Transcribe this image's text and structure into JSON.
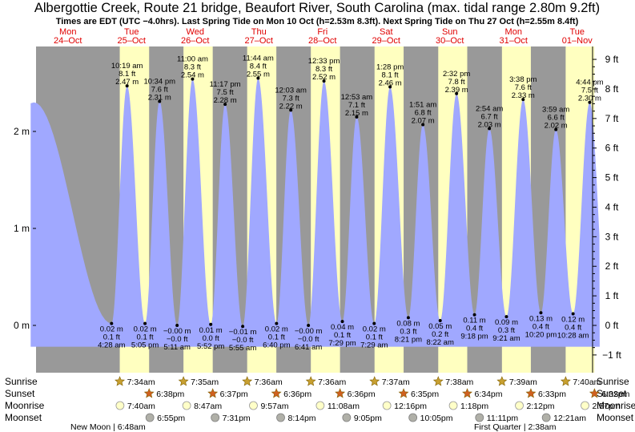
{
  "chart_data": {
    "type": "area",
    "title": "Albergottie Creek, Route 21 bridge, Beaufort River, South Carolina (max. tidal range 2.80m 9.2ft)",
    "subtitle": "Times are EDT (UTC −4.0hrs). Last Spring Tide on Mon 10 Oct (h=2.53m 8.3ft). Next Spring Tide on Thu 27 Oct (h=2.55m 8.4ft)",
    "days": [
      {
        "dow": "Mon",
        "date": "24–Oct"
      },
      {
        "dow": "Tue",
        "date": "25–Oct"
      },
      {
        "dow": "Wed",
        "date": "26–Oct"
      },
      {
        "dow": "Thu",
        "date": "27–Oct"
      },
      {
        "dow": "Fri",
        "date": "28–Oct"
      },
      {
        "dow": "Sat",
        "date": "29–Oct"
      },
      {
        "dow": "Sun",
        "date": "30–Oct"
      },
      {
        "dow": "Mon",
        "date": "31–Oct"
      },
      {
        "dow": "Tue",
        "date": "01–Nov"
      }
    ],
    "ylabel_left_unit": "m",
    "ylabel_right_unit": "ft",
    "ylim_m": [
      -0.45,
      2.95
    ],
    "yticks_m": [
      0,
      1,
      2
    ],
    "yticks_m_labels": [
      "0 m",
      "1 m",
      "2 m"
    ],
    "yticks_ft": [
      -1,
      0,
      1,
      2,
      3,
      4,
      5,
      6,
      7,
      8,
      9
    ],
    "yticks_ft_labels": [
      "−1 ft",
      "0 ft",
      "1 ft",
      "2 ft",
      "3 ft",
      "4 ft",
      "5 ft",
      "6 ft",
      "7 ft",
      "8 ft",
      "9 ft"
    ],
    "tides": [
      {
        "type": "high",
        "t": -0.8,
        "h": 2.3
      },
      {
        "type": "low",
        "d": 1,
        "hr": 4.467,
        "time": "4:28 am",
        "m": "0.02 m",
        "ft": "0.1 ft",
        "h": 0.02
      },
      {
        "type": "high",
        "d": 1,
        "hr": 10.317,
        "time": "10:19 am",
        "m": "2.47 m",
        "ft": "8.1 ft",
        "h": 2.47
      },
      {
        "type": "low",
        "d": 1,
        "hr": 17.083,
        "time": "5:05 pm",
        "m": "0.02 m",
        "ft": "0.1 ft",
        "h": 0.02
      },
      {
        "type": "high",
        "d": 1,
        "hr": 22.567,
        "time": "10:34 pm",
        "m": "2.31 m",
        "ft": "7.6 ft",
        "h": 2.31
      },
      {
        "type": "low",
        "d": 2,
        "hr": 5.183,
        "time": "5:11 am",
        "m": "−0.00 m",
        "ft": "−0.0 ft",
        "h": 0.0
      },
      {
        "type": "high",
        "d": 2,
        "hr": 11.0,
        "time": "11:00 am",
        "m": "2.54 m",
        "ft": "8.3 ft",
        "h": 2.54
      },
      {
        "type": "low",
        "d": 2,
        "hr": 17.867,
        "time": "5:52 pm",
        "m": "0.01 m",
        "ft": "0.0 ft",
        "h": 0.01
      },
      {
        "type": "high",
        "d": 2,
        "hr": 23.283,
        "time": "11:17 pm",
        "m": "2.28 m",
        "ft": "7.5 ft",
        "h": 2.28
      },
      {
        "type": "low",
        "d": 3,
        "hr": 5.917,
        "time": "5:55 am",
        "m": "−0.01 m",
        "ft": "−0.0 ft",
        "h": -0.01
      },
      {
        "type": "high",
        "d": 3,
        "hr": 11.733,
        "time": "11:44 am",
        "m": "2.55 m",
        "ft": "8.4 ft",
        "h": 2.55
      },
      {
        "type": "low",
        "d": 3,
        "hr": 18.667,
        "time": "6:40 pm",
        "m": "0.02 m",
        "ft": "0.1 ft",
        "h": 0.02
      },
      {
        "type": "high",
        "d": 4,
        "hr": 0.05,
        "time": "12:03 am",
        "m": "2.22 m",
        "ft": "7.3 ft",
        "h": 2.22
      },
      {
        "type": "low",
        "d": 4,
        "hr": 6.683,
        "time": "6:41 am",
        "m": "−0.00 m",
        "ft": "−0.0 ft",
        "h": 0.0
      },
      {
        "type": "high",
        "d": 4,
        "hr": 12.55,
        "time": "12:33 pm",
        "m": "2.52 m",
        "ft": "8.3 ft",
        "h": 2.52
      },
      {
        "type": "low",
        "d": 4,
        "hr": 19.483,
        "time": "7:29 pm",
        "m": "0.04 m",
        "ft": "0.1 ft",
        "h": 0.04
      },
      {
        "type": "high",
        "d": 5,
        "hr": 0.883,
        "time": "12:53 am",
        "m": "2.15 m",
        "ft": "7.1 ft",
        "h": 2.15
      },
      {
        "type": "low",
        "d": 5,
        "hr": 7.483,
        "time": "7:29 am",
        "m": "0.02 m",
        "ft": "0.1 ft",
        "h": 0.02
      },
      {
        "type": "high",
        "d": 5,
        "hr": 13.467,
        "time": "1:28 pm",
        "m": "2.46 m",
        "ft": "8.1 ft",
        "h": 2.46
      },
      {
        "type": "low",
        "d": 5,
        "hr": 20.35,
        "time": "8:21 pm",
        "m": "0.08 m",
        "ft": "0.3 ft",
        "h": 0.08
      },
      {
        "type": "high",
        "d": 6,
        "hr": 1.85,
        "time": "1:51 am",
        "m": "2.07 m",
        "ft": "6.8 ft",
        "h": 2.07
      },
      {
        "type": "low",
        "d": 6,
        "hr": 8.367,
        "time": "8:22 am",
        "m": "0.05 m",
        "ft": "0.2 ft",
        "h": 0.05
      },
      {
        "type": "high",
        "d": 6,
        "hr": 14.533,
        "time": "2:32 pm",
        "m": "2.39 m",
        "ft": "7.8 ft",
        "h": 2.39
      },
      {
        "type": "low",
        "d": 6,
        "hr": 21.3,
        "time": "9:18 pm",
        "m": "0.11 m",
        "ft": "0.4 ft",
        "h": 0.11
      },
      {
        "type": "high",
        "d": 7,
        "hr": 2.9,
        "time": "2:54 am",
        "m": "2.03 m",
        "ft": "6.7 ft",
        "h": 2.03
      },
      {
        "type": "low",
        "d": 7,
        "hr": 9.35,
        "time": "9:21 am",
        "m": "0.09 m",
        "ft": "0.3 ft",
        "h": 0.09
      },
      {
        "type": "high",
        "d": 7,
        "hr": 15.633,
        "time": "3:38 pm",
        "m": "2.33 m",
        "ft": "7.6 ft",
        "h": 2.33
      },
      {
        "type": "low",
        "d": 7,
        "hr": 22.333,
        "time": "10:20 pm",
        "m": "0.13 m",
        "ft": "0.4 ft",
        "h": 0.13
      },
      {
        "type": "high",
        "d": 8,
        "hr": 3.983,
        "time": "3:59 am",
        "m": "2.02 m",
        "ft": "6.6 ft",
        "h": 2.02
      },
      {
        "type": "low",
        "d": 8,
        "hr": 10.467,
        "time": "10:28 am",
        "m": "0.12 m",
        "ft": "0.4 ft",
        "h": 0.12
      },
      {
        "type": "high",
        "d": 8,
        "hr": 16.733,
        "time": "4:44 pm",
        "m": "2.30 m",
        "ft": "7.5 ft",
        "h": 2.3
      }
    ],
    "daylight": [
      {
        "d": 1,
        "rise": 7.567,
        "set": 18.633
      },
      {
        "d": 2,
        "rise": 7.583,
        "set": 18.617
      },
      {
        "d": 3,
        "rise": 7.6,
        "set": 18.6
      },
      {
        "d": 4,
        "rise": 7.6,
        "set": 18.6
      },
      {
        "d": 5,
        "rise": 7.617,
        "set": 18.583
      },
      {
        "d": 6,
        "rise": 7.633,
        "set": 18.567
      },
      {
        "d": 7,
        "rise": 7.65,
        "set": 18.55
      },
      {
        "d": 8,
        "rise": 7.667,
        "set": 18.533
      }
    ],
    "row_labels": {
      "sunrise": "Sunrise",
      "sunset": "Sunset",
      "moonrise": "Moonrise",
      "moonset": "Moonset"
    },
    "sunrise": [
      {
        "d": 1,
        "hr": 7.567,
        "label": "7:34am"
      },
      {
        "d": 2,
        "hr": 7.583,
        "label": "7:35am"
      },
      {
        "d": 3,
        "hr": 7.6,
        "label": "7:36am"
      },
      {
        "d": 4,
        "hr": 7.6,
        "label": "7:36am"
      },
      {
        "d": 5,
        "hr": 7.617,
        "label": "7:37am"
      },
      {
        "d": 6,
        "hr": 7.633,
        "label": "7:38am"
      },
      {
        "d": 7,
        "hr": 7.65,
        "label": "7:39am"
      },
      {
        "d": 8,
        "hr": 7.667,
        "label": "7:40am"
      }
    ],
    "sunset": [
      {
        "d": 1,
        "hr": 18.633,
        "label": "6:38pm"
      },
      {
        "d": 2,
        "hr": 18.617,
        "label": "6:37pm"
      },
      {
        "d": 3,
        "hr": 18.6,
        "label": "6:36pm"
      },
      {
        "d": 4,
        "hr": 18.6,
        "label": "6:36pm"
      },
      {
        "d": 5,
        "hr": 18.583,
        "label": "6:35pm"
      },
      {
        "d": 6,
        "hr": 18.567,
        "label": "6:34pm"
      },
      {
        "d": 7,
        "hr": 18.55,
        "label": "6:33pm"
      },
      {
        "d": 8,
        "hr": 18.533,
        "label": "6:32pm"
      }
    ],
    "moonrise": [
      {
        "d": 1,
        "hr": 7.667,
        "label": "7:40am"
      },
      {
        "d": 2,
        "hr": 8.783,
        "label": "8:47am"
      },
      {
        "d": 3,
        "hr": 9.95,
        "label": "9:57am"
      },
      {
        "d": 4,
        "hr": 11.133,
        "label": "11:08am"
      },
      {
        "d": 5,
        "hr": 12.267,
        "label": "12:16pm"
      },
      {
        "d": 6,
        "hr": 13.3,
        "label": "1:18pm"
      },
      {
        "d": 7,
        "hr": 14.2,
        "label": "2:12pm"
      },
      {
        "d": 8,
        "hr": 14.95,
        "label": "2:57pm"
      }
    ],
    "moonset": [
      {
        "d": 1,
        "hr": 18.917,
        "label": "6:55pm"
      },
      {
        "d": 2,
        "hr": 19.517,
        "label": "7:31pm"
      },
      {
        "d": 3,
        "hr": 20.233,
        "label": "8:14pm"
      },
      {
        "d": 4,
        "hr": 21.083,
        "label": "9:05pm"
      },
      {
        "d": 5,
        "hr": 22.083,
        "label": "10:05pm"
      },
      {
        "d": 6,
        "hr": 23.183,
        "label": "11:11pm"
      },
      {
        "d": 8,
        "hr": 0.35,
        "label": "12:21am"
      }
    ],
    "moon_phases": [
      "New Moon | 6:48am",
      "First Quarter | 2:38am"
    ],
    "colors": {
      "night": "#999999",
      "day": "#ffffc0",
      "water": "#a0a8ff",
      "dot": "#000000",
      "day_text": "#e00000",
      "sun": "#c8a030",
      "sunset": "#d06020"
    }
  }
}
